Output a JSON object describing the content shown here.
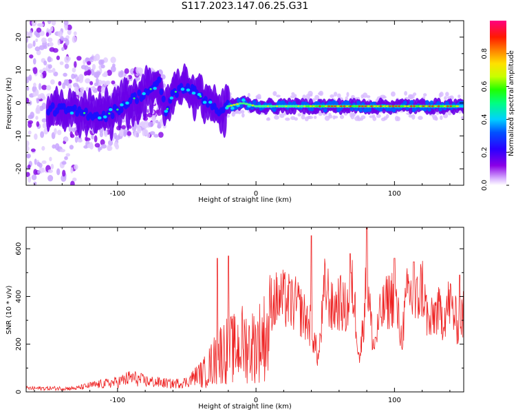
{
  "title": "S117.2023.147.06.25.G31",
  "chart_data": [
    {
      "type": "heatmap",
      "xlabel": "Height of straight line (km)",
      "ylabel": "Frequency (Hz)",
      "xlim": [
        -166,
        150
      ],
      "ylim": [
        -25,
        25
      ],
      "xticks": [
        -100,
        0,
        100
      ],
      "yticks": [
        -20,
        -10,
        0,
        10,
        20
      ],
      "colorbar": {
        "label": "Normalized spectral amplitude",
        "ticks": [
          0.0,
          0.2,
          0.4,
          0.6,
          0.8
        ],
        "range": [
          0,
          1
        ],
        "colormap": [
          "#ffffff",
          "#cc99ff",
          "#7a00e6",
          "#0000ff",
          "#00c8ff",
          "#00ff40",
          "#c8ff00",
          "#ffd000",
          "#ff3000",
          "#ff0080"
        ]
      },
      "ridge": {
        "description_points_x": [
          -140,
          -125,
          -110,
          -100,
          -90,
          -80,
          -70,
          -65,
          -60,
          -50,
          -40,
          -30,
          -25,
          -20,
          -10,
          0,
          20,
          40,
          60,
          80,
          100,
          120,
          150
        ],
        "description_points_y": [
          -2,
          -3,
          -4,
          -2,
          1,
          3,
          6,
          -3,
          3,
          5,
          2,
          -1,
          -3,
          -1,
          0,
          -1,
          -1,
          -1,
          -1,
          -1,
          -1,
          -1,
          -1
        ]
      },
      "grid": false
    },
    {
      "type": "line",
      "xlabel": "Height of straight line (km)",
      "ylabel": "SNR (10 * v/v)",
      "xlim": [
        -166,
        150
      ],
      "ylim": [
        0,
        690
      ],
      "xticks": [
        -100,
        0,
        100
      ],
      "yticks": [
        0,
        200,
        400,
        600
      ],
      "line_color": "#ee2222",
      "envelope": {
        "x": [
          -166,
          -130,
          -120,
          -100,
          -90,
          -80,
          -60,
          -50,
          -40,
          -35,
          -30,
          -25,
          -20,
          -15,
          -10,
          -5,
          0,
          5,
          10,
          20,
          30,
          40,
          45,
          50,
          55,
          60,
          65,
          70,
          75,
          80,
          85,
          90,
          95,
          100,
          105,
          110,
          115,
          120,
          125,
          130,
          135,
          140,
          145,
          150
        ],
        "y": [
          20,
          20,
          35,
          55,
          80,
          60,
          45,
          55,
          110,
          160,
          220,
          280,
          300,
          300,
          340,
          320,
          330,
          380,
          420,
          430,
          400,
          300,
          150,
          500,
          380,
          420,
          380,
          480,
          150,
          520,
          200,
          360,
          420,
          450,
          250,
          480,
          400,
          500,
          300,
          380,
          350,
          420,
          320,
          360
        ]
      },
      "peaks": [
        {
          "x": -20,
          "y": 570
        },
        {
          "x": -28,
          "y": 560
        },
        {
          "x": 40,
          "y": 655
        },
        {
          "x": 80,
          "y": 690
        },
        {
          "x": 68,
          "y": 580
        },
        {
          "x": 100,
          "y": 560
        },
        {
          "x": 114,
          "y": 545
        },
        {
          "x": 147,
          "y": 490
        }
      ],
      "grid": false
    }
  ]
}
